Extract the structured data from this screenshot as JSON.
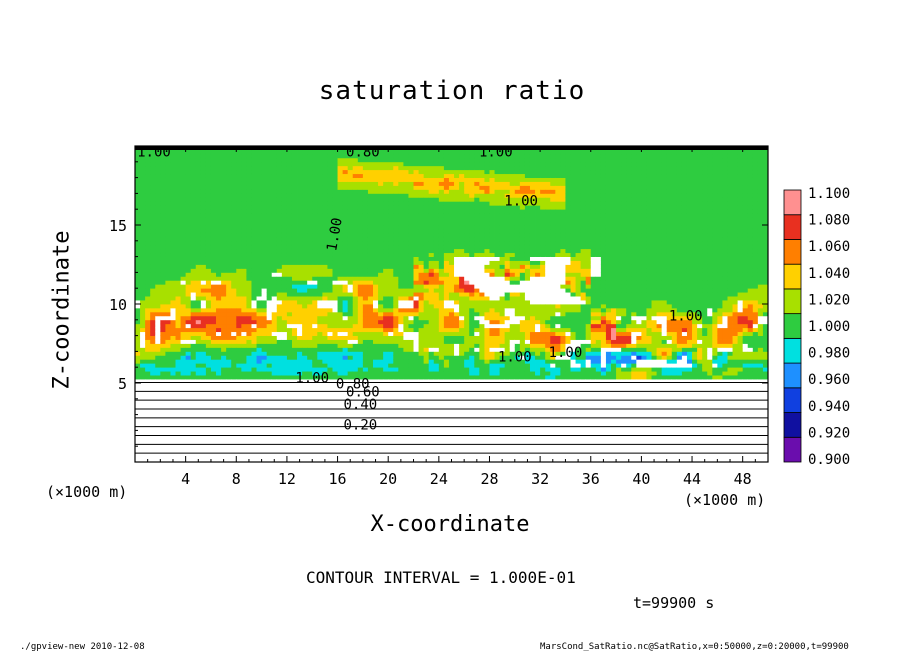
{
  "colors": {
    "white_region": "#ffffff",
    "contour_line": "#000000",
    "background": "#ffffff"
  },
  "footer": {
    "left": "./gpview-new   2010-12-08",
    "right": "MarsCond_SatRatio.nc@SatRatio,x=0:50000,z=0:20000,t=99900"
  },
  "chart_data": {
    "type": "heatmap",
    "title": "saturation ratio",
    "xlabel": "X-coordinate",
    "ylabel": "Z-coordinate",
    "x_unit": "(×1000 m)",
    "y_unit": "(×1000 m)",
    "xlim": [
      0,
      50
    ],
    "ylim": [
      0,
      20
    ],
    "x_ticks": [
      4,
      8,
      12,
      16,
      20,
      24,
      28,
      32,
      36,
      40,
      44,
      48
    ],
    "y_ticks": [
      5,
      10,
      15
    ],
    "contour_interval_text": "CONTOUR INTERVAL = 1.000E-01",
    "time_text": "t=99900 s",
    "contour_labels": [
      {
        "text": "1.00",
        "x": 1.5,
        "z": 19.6
      },
      {
        "text": "0.80",
        "x": 18.0,
        "z": 19.6
      },
      {
        "text": "1.00",
        "x": 28.5,
        "z": 19.6
      },
      {
        "text": "1.00",
        "x": 30.5,
        "z": 16.5
      },
      {
        "text": "1.00",
        "x": 15.8,
        "z": 14.4,
        "rotated": true
      },
      {
        "text": "1.00",
        "x": 43.5,
        "z": 9.2
      },
      {
        "text": "1.00",
        "x": 30.0,
        "z": 6.6
      },
      {
        "text": "1.00",
        "x": 34.0,
        "z": 6.9
      },
      {
        "text": "1.00",
        "x": 14.0,
        "z": 5.3
      },
      {
        "text": "0.80",
        "x": 17.2,
        "z": 4.9
      },
      {
        "text": "0.60",
        "x": 18.0,
        "z": 4.4
      },
      {
        "text": "0.40",
        "x": 17.8,
        "z": 3.6
      },
      {
        "text": "0.20",
        "x": 17.8,
        "z": 2.3
      }
    ],
    "colorbar": {
      "levels": [
        0.9,
        0.92,
        0.94,
        0.96,
        0.98,
        1.0,
        1.02,
        1.04,
        1.06,
        1.08,
        1.1
      ],
      "labels": [
        "0.900",
        "0.920",
        "0.940",
        "0.960",
        "0.980",
        "1.000",
        "1.020",
        "1.040",
        "1.060",
        "1.080",
        "1.100"
      ],
      "colors": [
        "#6a0dad",
        "#1010a0",
        "#1040e0",
        "#1e90ff",
        "#00e0e0",
        "#2ecc40",
        "#a8e000",
        "#ffd000",
        "#ff7f00",
        "#e83020",
        "#ff9090"
      ]
    }
  }
}
